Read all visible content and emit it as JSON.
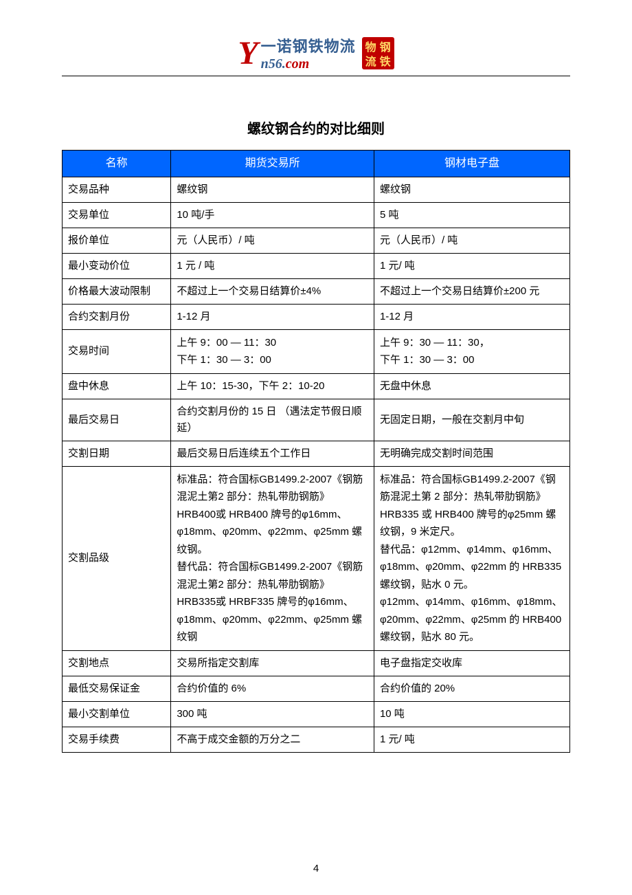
{
  "logo": {
    "y": "Y",
    "cn": "一诺钢铁物流",
    "domain_prefix": "n56",
    "domain_dot": ".",
    "domain_suffix": "com",
    "badge": [
      "物",
      "钢",
      "流",
      "铁"
    ]
  },
  "title": "螺纹钢合约的对比细则",
  "table": {
    "header_bg": "#0066ff",
    "header_color": "#ffffff",
    "border_color": "#000000",
    "columns": [
      "名称",
      "期货交易所",
      "钢材电子盘"
    ],
    "rows": [
      {
        "name": "交易品种",
        "futures": "螺纹钢",
        "eplate": "螺纹钢"
      },
      {
        "name": "交易单位",
        "futures": "10 吨/手",
        "eplate": "5 吨"
      },
      {
        "name": "报价单位",
        "futures": "元（人民币）/ 吨",
        "eplate": "元（人民币）/ 吨"
      },
      {
        "name": "最小变动价位",
        "futures": "1 元 / 吨",
        "eplate": "1 元/ 吨"
      },
      {
        "name": "价格最大波动限制",
        "futures": "不超过上一个交易日结算价±4%",
        "eplate": "不超过上一个交易日结算价±200 元"
      },
      {
        "name": "合约交割月份",
        "futures": "1-12 月",
        "eplate": "1-12 月"
      },
      {
        "name": "交易时间",
        "futures": "上午 9：00 — 11：30\n下午 1：30 — 3：00",
        "eplate": "上午 9：30 — 11：30，\n下午 1：30 — 3：00"
      },
      {
        "name": "盘中休息",
        "futures": "上午 10：15-30，下午 2：10-20",
        "eplate": "无盘中休息"
      },
      {
        "name": "最后交易日",
        "futures": "合约交割月份的 15 日 （遇法定节假日顺延）",
        "eplate": "无固定日期，一般在交割月中旬"
      },
      {
        "name": "交割日期",
        "futures": "最后交易日后连续五个工作日",
        "eplate": "无明确完成交割时间范围"
      },
      {
        "name": "交割品级",
        "futures": "标准品：符合国标GB1499.2-2007《钢筋混泥土第2 部分：热轧带肋钢筋》HRB400或 HRB400 牌号的φ16mm、φ18mm、φ20mm、φ22mm、φ25mm 螺纹钢。\n替代品：符合国标GB1499.2-2007《钢筋混泥土第2 部分：热轧带肋钢筋》HRB335或 HRBF335 牌号的φ16mm、φ18mm、φ20mm、φ22mm、φ25mm 螺纹钢",
        "eplate": "标准品：符合国标GB1499.2-2007《钢筋混泥土第 2 部分：热轧带肋钢筋》HRB335 或 HRB400 牌号的φ25mm 螺纹钢，9 米定尺。\n替代品：φ12mm、φ14mm、φ16mm、φ18mm、φ20mm、φ22mm 的 HRB335 螺纹钢，贴水 0 元。\nφ12mm、φ14mm、φ16mm、φ18mm、φ20mm、φ22mm、φ25mm 的 HRB400 螺纹钢，贴水 80 元。"
      },
      {
        "name": "交割地点",
        "futures": "交易所指定交割库",
        "eplate": "电子盘指定交收库"
      },
      {
        "name": "最低交易保证金",
        "futures": "合约价值的 6%",
        "eplate": "合约价值的 20%"
      },
      {
        "name": "最小交割单位",
        "futures": "300 吨",
        "eplate": "10 吨"
      },
      {
        "name": "交易手续费",
        "futures": "不高于成交金额的万分之二",
        "eplate": "1 元/ 吨"
      }
    ]
  },
  "page_number": "4"
}
